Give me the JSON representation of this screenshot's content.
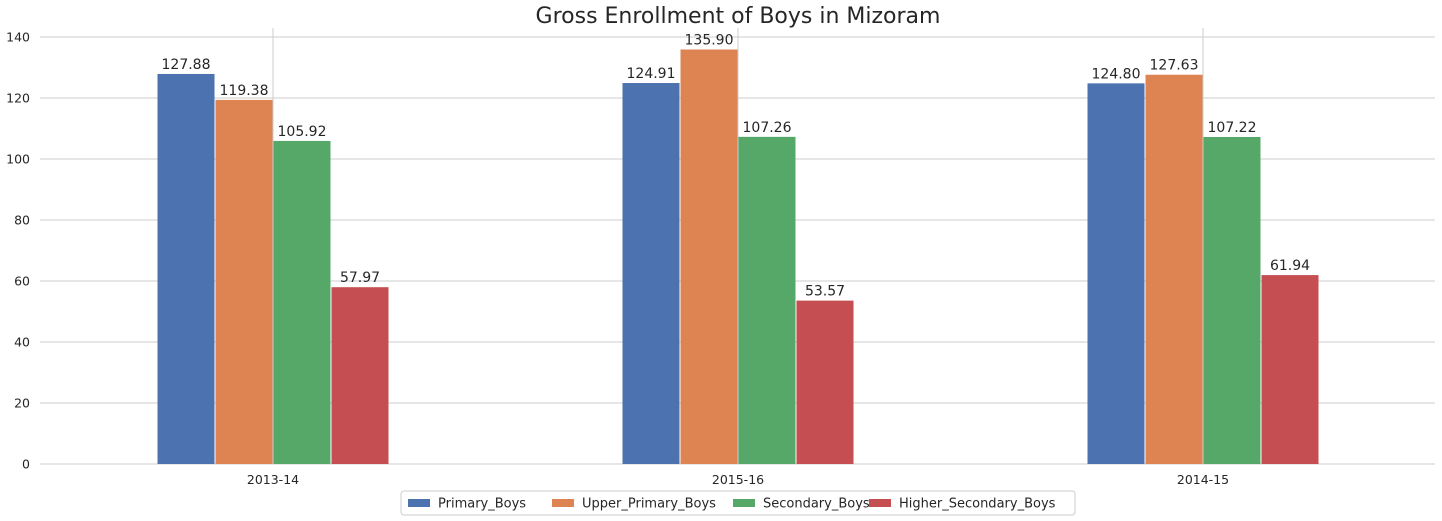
{
  "chart_data": {
    "type": "bar",
    "title": "Gross Enrollment of Boys in Mizoram",
    "xlabel": "",
    "ylabel": "",
    "categories": [
      "2013-14",
      "2015-16",
      "2014-15"
    ],
    "ylim": [
      0,
      140
    ],
    "yticks": [
      0,
      20,
      40,
      60,
      80,
      100,
      120,
      140
    ],
    "grid": true,
    "legend_position": "bottom-center",
    "series": [
      {
        "name": "Primary_Boys",
        "color": "#4c72b0",
        "values": [
          127.88,
          124.91,
          124.8
        ],
        "labels": [
          "127.88",
          "124.91",
          "124.80"
        ]
      },
      {
        "name": "Upper_Primary_Boys",
        "color": "#dd8452",
        "values": [
          119.38,
          135.9,
          127.63
        ],
        "labels": [
          "119.38",
          "135.90",
          "127.63"
        ]
      },
      {
        "name": "Secondary_Boys",
        "color": "#55a868",
        "values": [
          105.92,
          107.26,
          107.22
        ],
        "labels": [
          "105.92",
          "107.26",
          "107.22"
        ]
      },
      {
        "name": "Higher_Secondary_Boys",
        "color": "#c44e52",
        "values": [
          57.97,
          53.57,
          61.94
        ],
        "labels": [
          "57.97",
          "53.57",
          "61.94"
        ]
      }
    ]
  }
}
